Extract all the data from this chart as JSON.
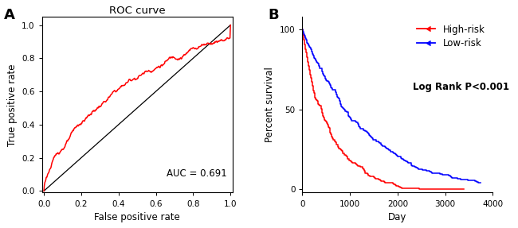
{
  "roc_title": "ROC curve",
  "roc_xlabel": "False positive rate",
  "roc_ylabel": "True positive rate",
  "roc_auc_text": "AUC = 0.691",
  "roc_color": "#FF0000",
  "roc_xticks": [
    0.0,
    0.2,
    0.4,
    0.6,
    0.8,
    1.0
  ],
  "roc_yticks": [
    0.0,
    0.2,
    0.4,
    0.6,
    0.8,
    1.0
  ],
  "km_xlabel": "Day",
  "km_ylabel": "Percent survival",
  "km_xticks": [
    0,
    1000,
    2000,
    3000,
    4000
  ],
  "km_yticks": [
    0,
    50,
    100
  ],
  "km_xlim": [
    0,
    4000
  ],
  "km_ylim": [
    -2,
    108
  ],
  "high_risk_color": "#FF0000",
  "low_risk_color": "#0000FF",
  "high_risk_label": "High-risk",
  "low_risk_label": "Low-risk",
  "log_rank_text": "Log Rank P<0.001",
  "panel_a_label": "A",
  "panel_b_label": "B",
  "background_color": "#FFFFFF"
}
